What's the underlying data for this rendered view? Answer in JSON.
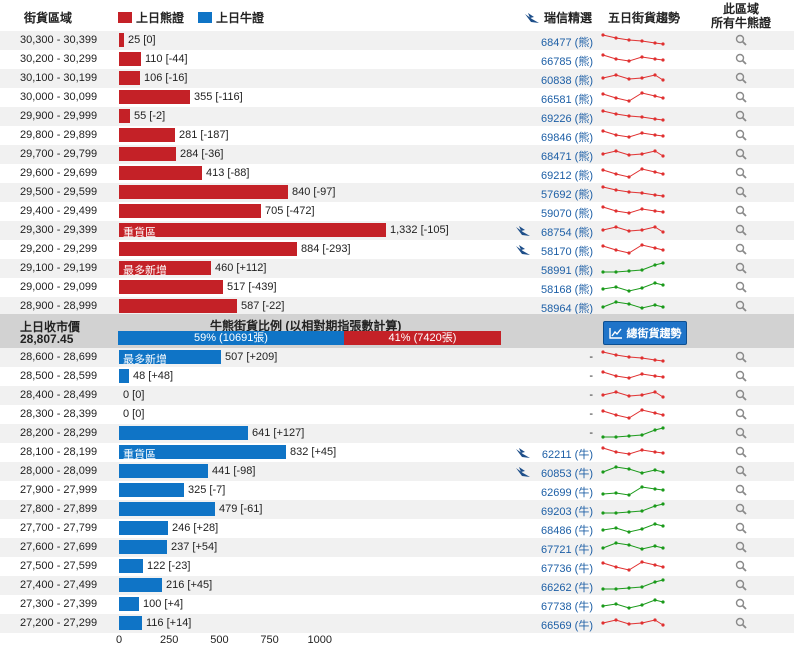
{
  "header": {
    "zone_title": "街貨區域",
    "legend_bear": "上日熊證",
    "legend_bull": "上日牛證",
    "ubs_title": "瑞信精選",
    "trend_title": "五日街貨趨勢",
    "zone_all_line1": "此區域",
    "zone_all_line2": "所有牛熊證"
  },
  "colors": {
    "bear": "#c42127",
    "bull": "#0f74c6",
    "up": "#1a9a1a",
    "down": "#e03030"
  },
  "bear_rows": [
    {
      "range": "30,300 - 30,399",
      "value": 25,
      "label": "25 [0]",
      "ubs": "68477 (熊)",
      "tag": "",
      "trend": "down"
    },
    {
      "range": "30,200 - 30,299",
      "value": 110,
      "label": "110 [-44]",
      "ubs": "66785 (熊)",
      "tag": "",
      "trend": "down"
    },
    {
      "range": "30,100 - 30,199",
      "value": 106,
      "label": "106 [-16]",
      "ubs": "60838 (熊)",
      "tag": "",
      "trend": "down"
    },
    {
      "range": "30,000 - 30,099",
      "value": 355,
      "label": "355 [-116]",
      "ubs": "66581 (熊)",
      "tag": "",
      "trend": "down"
    },
    {
      "range": "29,900 - 29,999",
      "value": 55,
      "label": "55 [-2]",
      "ubs": "69226 (熊)",
      "tag": "",
      "trend": "down"
    },
    {
      "range": "29,800 - 29,899",
      "value": 281,
      "label": "281 [-187]",
      "ubs": "69846 (熊)",
      "tag": "",
      "trend": "down"
    },
    {
      "range": "29,700 - 29,799",
      "value": 284,
      "label": "284 [-36]",
      "ubs": "68471 (熊)",
      "tag": "",
      "trend": "down"
    },
    {
      "range": "29,600 - 29,699",
      "value": 413,
      "label": "413 [-88]",
      "ubs": "69212 (熊)",
      "tag": "",
      "trend": "down"
    },
    {
      "range": "29,500 - 29,599",
      "value": 840,
      "label": "840 [-97]",
      "ubs": "57692 (熊)",
      "tag": "",
      "trend": "down"
    },
    {
      "range": "29,400 - 29,499",
      "value": 705,
      "label": "705 [-472]",
      "ubs": "59070 (熊)",
      "tag": "",
      "trend": "down"
    },
    {
      "range": "29,300 - 29,399",
      "value": 1332,
      "label": "1,332 [-105]",
      "ubs": "68754 (熊)",
      "tag": "重貨區",
      "trend": "down",
      "ubs_icon": true
    },
    {
      "range": "29,200 - 29,299",
      "value": 884,
      "label": "884 [-293]",
      "ubs": "58170 (熊)",
      "tag": "",
      "trend": "down",
      "ubs_icon": true
    },
    {
      "range": "29,100 - 29,199",
      "value": 460,
      "label": "460 [+112]",
      "ubs": "58991 (熊)",
      "tag": "最多新增",
      "trend": "up"
    },
    {
      "range": "29,000 - 29,099",
      "value": 517,
      "label": "517 [-439]",
      "ubs": "58168 (熊)",
      "tag": "",
      "trend": "up"
    },
    {
      "range": "28,900 - 28,999",
      "value": 587,
      "label": "587 [-22]",
      "ubs": "58964 (熊)",
      "tag": "",
      "trend": "up"
    }
  ],
  "middle": {
    "close_label": "上日收市價",
    "close_value": "28,807.45",
    "ratio_title": "牛熊街貨比例 (以相對期指張數計算)",
    "bull_pct": 59,
    "bull_text": "59% (10691張)",
    "bear_text": "41% (7420張)",
    "trend_button": "總街貨趨勢"
  },
  "bull_rows": [
    {
      "range": "28,600 - 28,699",
      "value": 507,
      "label": "507 [+209]",
      "ubs": "-",
      "tag": "最多新增",
      "trend": "down"
    },
    {
      "range": "28,500 - 28,599",
      "value": 48,
      "label": "48 [+48]",
      "ubs": "-",
      "tag": "",
      "trend": "down"
    },
    {
      "range": "28,400 - 28,499",
      "value": 0,
      "label": "0 [0]",
      "ubs": "-",
      "tag": "",
      "trend": "down"
    },
    {
      "range": "28,300 - 28,399",
      "value": 0,
      "label": "0 [0]",
      "ubs": "-",
      "tag": "",
      "trend": "down"
    },
    {
      "range": "28,200 - 28,299",
      "value": 641,
      "label": "641 [+127]",
      "ubs": "-",
      "tag": "",
      "trend": "up"
    },
    {
      "range": "28,100 - 28,199",
      "value": 832,
      "label": "832 [+45]",
      "ubs": "62211 (牛)",
      "tag": "重貨區",
      "trend": "down",
      "ubs_icon": true
    },
    {
      "range": "28,000 - 28,099",
      "value": 441,
      "label": "441 [-98]",
      "ubs": "60853 (牛)",
      "tag": "",
      "trend": "up",
      "ubs_icon": true
    },
    {
      "range": "27,900 - 27,999",
      "value": 325,
      "label": "325 [-7]",
      "ubs": "62699 (牛)",
      "tag": "",
      "trend": "up"
    },
    {
      "range": "27,800 - 27,899",
      "value": 479,
      "label": "479 [-61]",
      "ubs": "69203 (牛)",
      "tag": "",
      "trend": "up"
    },
    {
      "range": "27,700 - 27,799",
      "value": 246,
      "label": "246 [+28]",
      "ubs": "68486 (牛)",
      "tag": "",
      "trend": "up"
    },
    {
      "range": "27,600 - 27,699",
      "value": 237,
      "label": "237 [+54]",
      "ubs": "67721 (牛)",
      "tag": "",
      "trend": "up"
    },
    {
      "range": "27,500 - 27,599",
      "value": 122,
      "label": "122 [-23]",
      "ubs": "67736 (牛)",
      "tag": "",
      "trend": "down"
    },
    {
      "range": "27,400 - 27,499",
      "value": 216,
      "label": "216 [+45]",
      "ubs": "66262 (牛)",
      "tag": "",
      "trend": "up"
    },
    {
      "range": "27,300 - 27,399",
      "value": 100,
      "label": "100 [+4]",
      "ubs": "67738 (牛)",
      "tag": "",
      "trend": "up"
    },
    {
      "range": "27,200 - 27,299",
      "value": 116,
      "label": "116 [+14]",
      "ubs": "66569 (牛)",
      "tag": "",
      "trend": "down"
    }
  ],
  "axis_ticks": [
    "0",
    "250",
    "500",
    "750",
    "1000"
  ],
  "axis_values": [
    0,
    250,
    500,
    750,
    1000
  ]
}
